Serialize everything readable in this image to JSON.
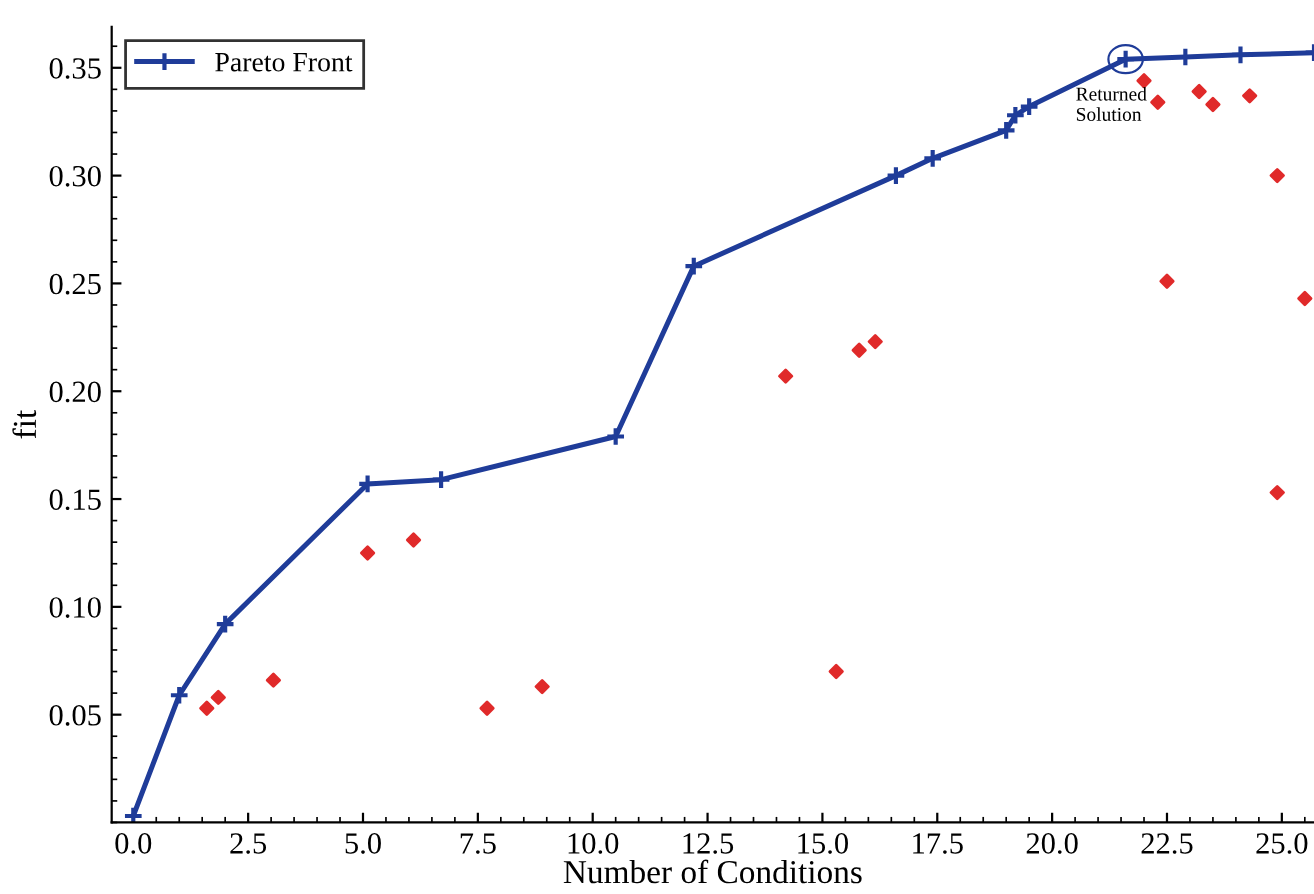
{
  "chart_data": {
    "type": "line",
    "xlabel": "Number of Conditions",
    "ylabel": "fit",
    "xlim": [
      -0.47,
      25.7
    ],
    "ylim": [
      0.0,
      0.369
    ],
    "xticks": [
      {
        "value": 0,
        "label": "0.0"
      },
      {
        "value": 2.5,
        "label": "2.5"
      },
      {
        "value": 5,
        "label": "5.0"
      },
      {
        "value": 7.5,
        "label": "7.5"
      },
      {
        "value": 10,
        "label": "10.0"
      },
      {
        "value": 12.5,
        "label": "12.5"
      },
      {
        "value": 15,
        "label": "15.0"
      },
      {
        "value": 17.5,
        "label": "17.5"
      },
      {
        "value": 20,
        "label": "20.0"
      },
      {
        "value": 22.5,
        "label": "22.5"
      },
      {
        "value": 25,
        "label": "25.0"
      }
    ],
    "yticks": [
      0.05,
      {
        "value": 0.1,
        "label": "0.10"
      },
      0.15,
      {
        "value": 0.2,
        "label": "0.20"
      },
      0.25,
      {
        "value": 0.3,
        "label": "0.30"
      },
      0.35
    ],
    "grid": false,
    "legend": "top left",
    "series": [
      {
        "name": "Pareto Front",
        "color": "#1f3c99",
        "marker": "cross",
        "line_style": "solid",
        "x": [
          0,
          1.0,
          2.0,
          5.1,
          6.7,
          10.5,
          12.2,
          16.6,
          17.4,
          19.0,
          19.2,
          19.5,
          21.6,
          22.9,
          24.1,
          25.7
        ],
        "values": [
          0.003,
          0.059,
          0.092,
          0.157,
          0.159,
          0.179,
          0.258,
          0.3,
          0.308,
          0.321,
          0.328,
          0.332,
          0.354,
          0.355,
          0.356,
          0.357
        ]
      },
      {
        "type": "scatter",
        "color": "#e02a2a",
        "marker": "diamond",
        "x": [
          1.6,
          1.85,
          3.05,
          5.1,
          6.1,
          7.7,
          8.9,
          14.2,
          15.8,
          16.15,
          15.3,
          22.0,
          22.3,
          23.2,
          23.5,
          24.3,
          24.9,
          22.5,
          24.9,
          25.5
        ],
        "values": [
          0.053,
          0.058,
          0.066,
          0.125,
          0.131,
          0.053,
          0.063,
          0.207,
          0.219,
          0.223,
          0.07,
          0.344,
          0.334,
          0.339,
          0.333,
          0.337,
          0.3,
          0.251,
          0.153,
          0.243
        ]
      }
    ],
    "annotations": [
      {
        "text": "Returned\nSolution",
        "x": 21.6,
        "y": 0.354
      }
    ]
  }
}
